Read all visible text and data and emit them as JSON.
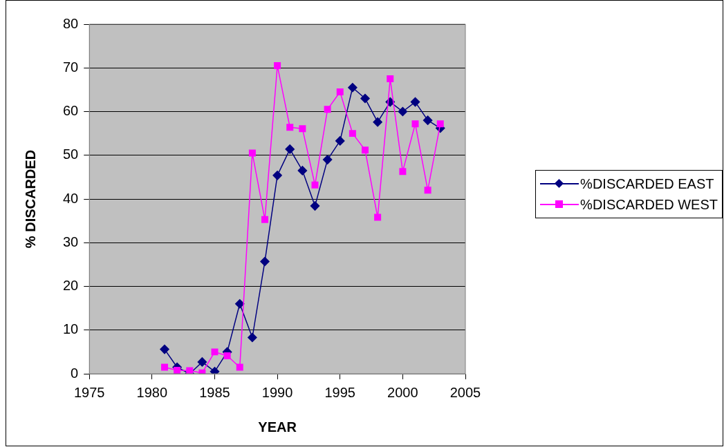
{
  "chart_data": {
    "type": "line",
    "xlabel": "YEAR",
    "ylabel": "% DISCARDED",
    "x": [
      1981,
      1982,
      1983,
      1984,
      1985,
      1986,
      1987,
      1988,
      1989,
      1990,
      1991,
      1992,
      1993,
      1994,
      1995,
      1996,
      1997,
      1998,
      1999,
      2000,
      2001,
      2002,
      2003
    ],
    "series": [
      {
        "name": "%DISCARDED EAST",
        "color": "#000080",
        "marker": "diamond",
        "values": [
          5.6,
          1.5,
          0,
          2.7,
          0.5,
          5,
          16,
          8.3,
          25.7,
          45.4,
          51.4,
          46.5,
          38.4,
          49,
          53.3,
          65.5,
          63,
          57.6,
          62.2,
          60,
          62.2,
          58,
          56.2
        ]
      },
      {
        "name": "%DISCARDED WEST",
        "color": "#ff00ff",
        "marker": "square",
        "values": [
          1.5,
          0.8,
          0.7,
          0.2,
          5,
          4.1,
          1.5,
          50.5,
          35.3,
          70.5,
          56.4,
          56.1,
          43.2,
          60.5,
          64.5,
          55,
          51.2,
          35.8,
          67.5,
          46.3,
          57.2,
          42,
          57.2
        ]
      }
    ],
    "xlim": [
      1975,
      2005
    ],
    "xticks": [
      1975,
      1980,
      1985,
      1990,
      1995,
      2000,
      2005
    ],
    "ylim": [
      0,
      80
    ],
    "yticks": [
      0,
      10,
      20,
      30,
      40,
      50,
      60,
      70,
      80
    ],
    "grid": "y",
    "legend": "right",
    "line_style": "solid"
  }
}
